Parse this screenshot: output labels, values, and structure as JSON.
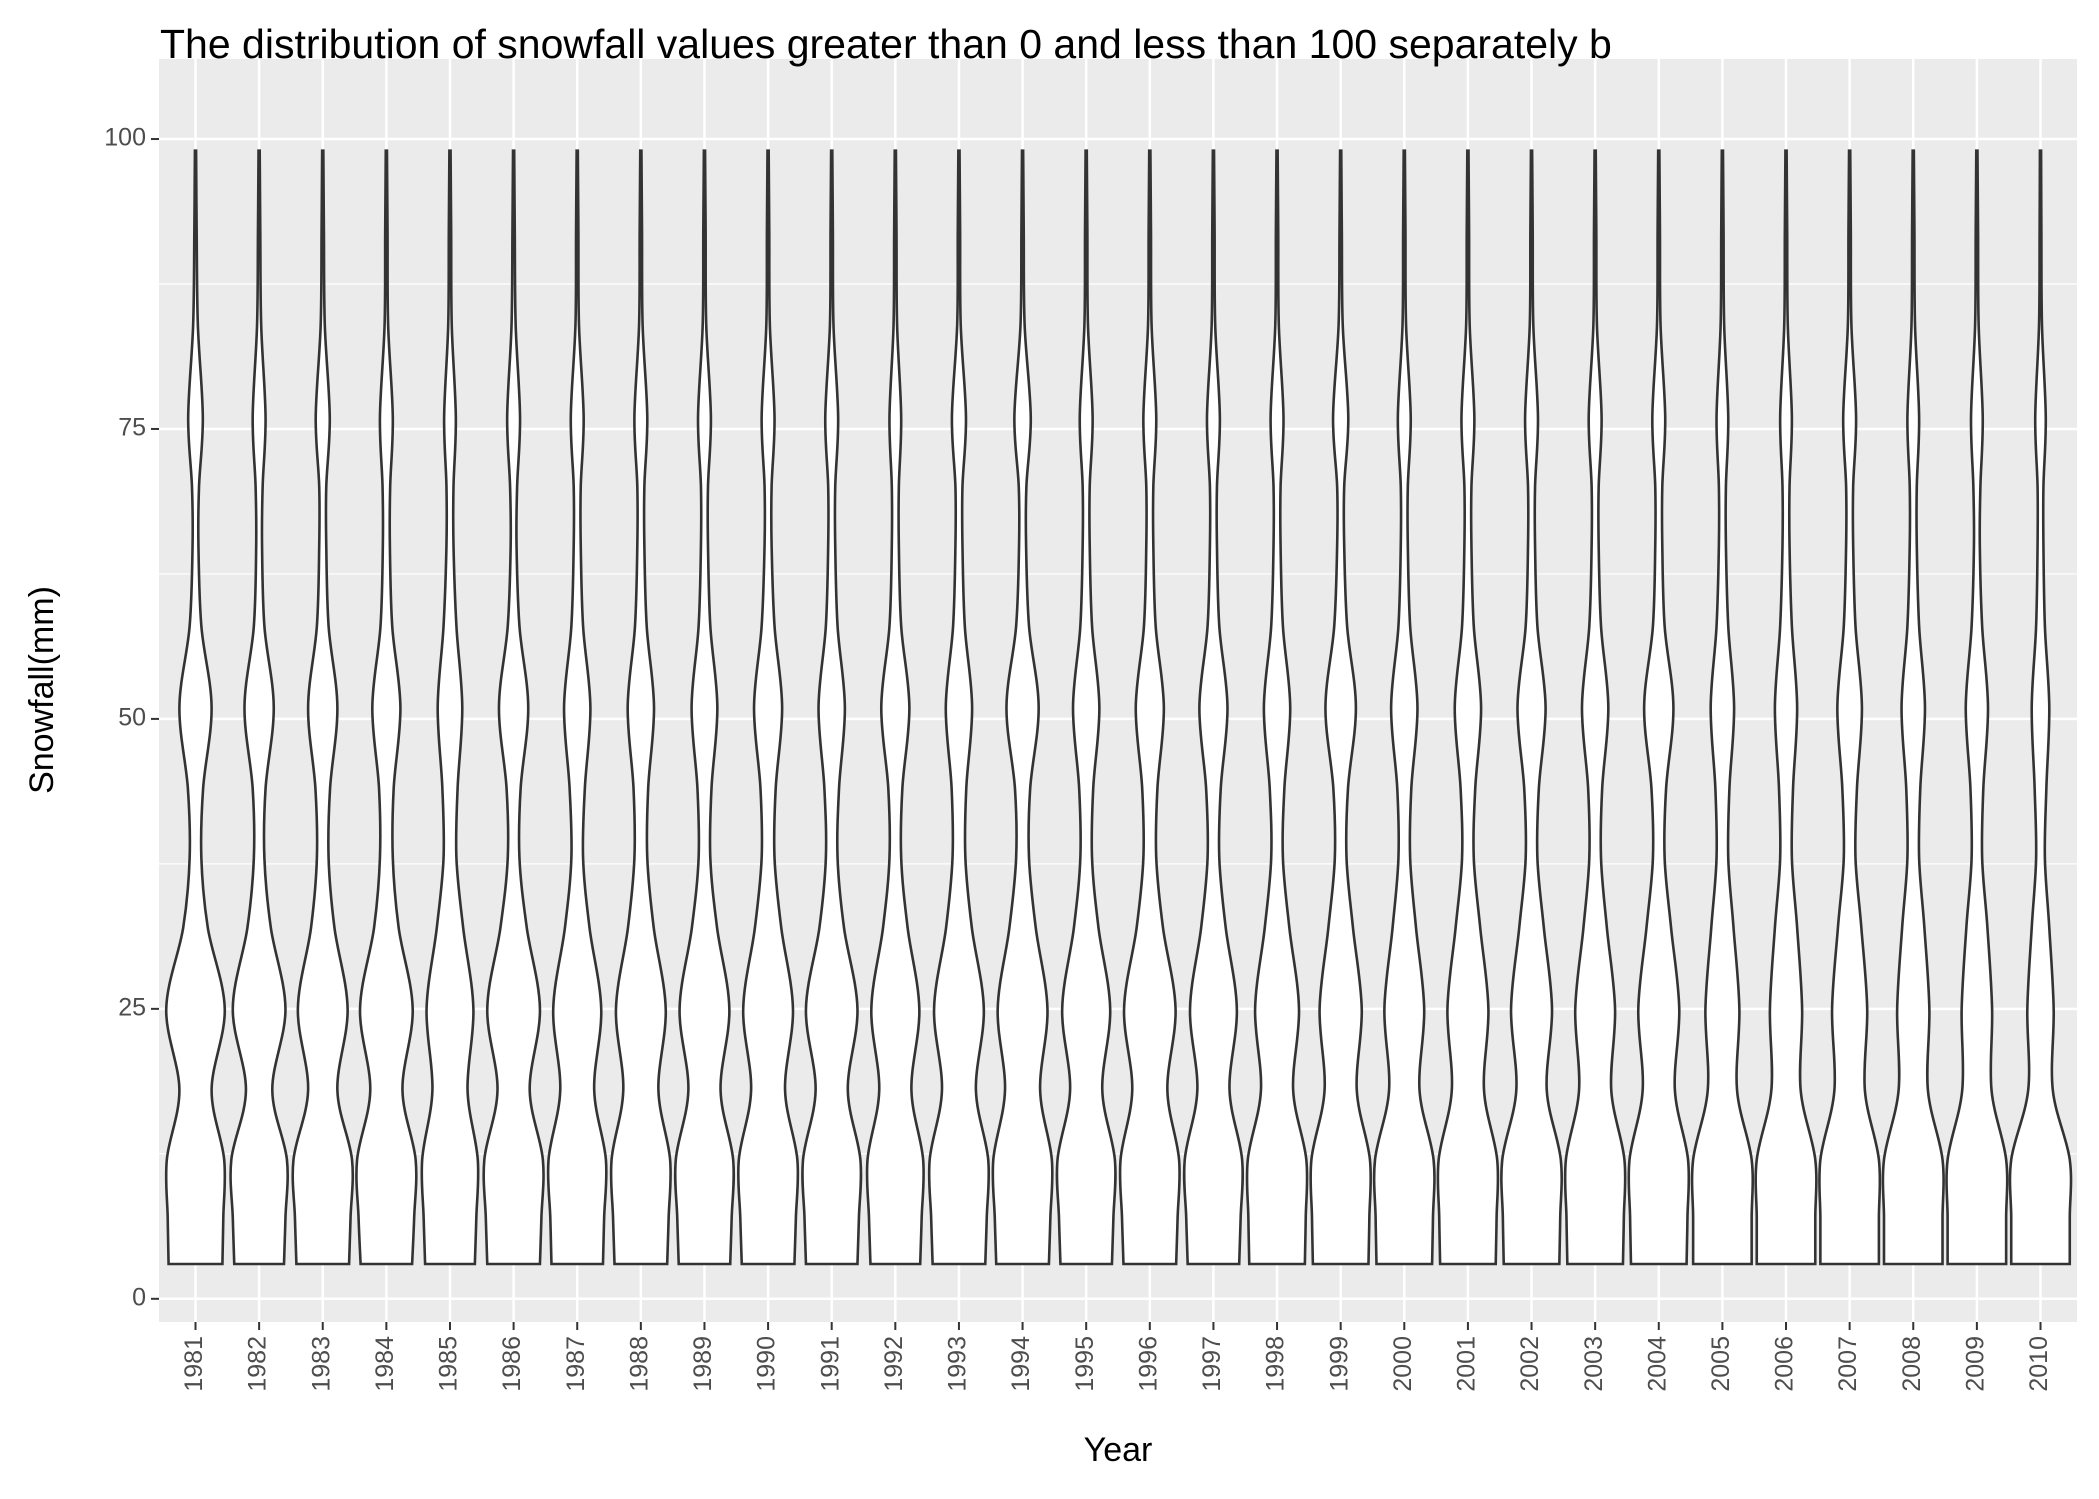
{
  "chart_data": {
    "type": "violin",
    "title": "The distribution of snowfall values greater than 0 and less than 100 separately b",
    "x_label": "Year",
    "y_label": "Snowfall(mm)",
    "categories": [
      "1981",
      "1982",
      "1983",
      "1984",
      "1985",
      "1986",
      "1987",
      "1988",
      "1989",
      "1990",
      "1991",
      "1992",
      "1993",
      "1994",
      "1995",
      "1996",
      "1997",
      "1998",
      "1999",
      "2000",
      "2001",
      "2002",
      "2003",
      "2004",
      "2005",
      "2006",
      "2007",
      "2008",
      "2009",
      "2010"
    ],
    "density_y": [
      3,
      7,
      12,
      18,
      25,
      32,
      38,
      44,
      51,
      58,
      65,
      70,
      76,
      84,
      92,
      99
    ],
    "density": [
      [
        0.92,
        0.95,
        0.98,
        0.55,
        1.0,
        0.42,
        0.2,
        0.26,
        0.55,
        0.2,
        0.1,
        0.12,
        0.25,
        0.08,
        0.04,
        0.02
      ],
      [
        0.85,
        0.9,
        0.95,
        0.45,
        0.9,
        0.4,
        0.18,
        0.22,
        0.5,
        0.18,
        0.1,
        0.12,
        0.22,
        0.07,
        0.04,
        0.02
      ],
      [
        0.9,
        0.95,
        1.0,
        0.5,
        0.85,
        0.4,
        0.2,
        0.25,
        0.5,
        0.2,
        0.12,
        0.12,
        0.24,
        0.07,
        0.04,
        0.02
      ],
      [
        0.88,
        0.95,
        1.0,
        0.55,
        0.9,
        0.42,
        0.22,
        0.25,
        0.48,
        0.2,
        0.12,
        0.13,
        0.22,
        0.06,
        0.04,
        0.02
      ],
      [
        0.85,
        0.9,
        0.95,
        0.6,
        0.8,
        0.45,
        0.22,
        0.26,
        0.42,
        0.22,
        0.12,
        0.12,
        0.2,
        0.06,
        0.04,
        0.02
      ],
      [
        0.9,
        0.95,
        1.0,
        0.55,
        0.9,
        0.45,
        0.2,
        0.24,
        0.5,
        0.2,
        0.1,
        0.12,
        0.22,
        0.07,
        0.04,
        0.02
      ],
      [
        0.88,
        0.92,
        0.98,
        0.58,
        0.82,
        0.42,
        0.2,
        0.26,
        0.45,
        0.2,
        0.12,
        0.12,
        0.22,
        0.06,
        0.04,
        0.02
      ],
      [
        0.9,
        0.95,
        1.0,
        0.6,
        0.85,
        0.44,
        0.22,
        0.25,
        0.45,
        0.2,
        0.12,
        0.12,
        0.22,
        0.06,
        0.04,
        0.02
      ],
      [
        0.88,
        0.93,
        0.98,
        0.55,
        0.85,
        0.43,
        0.2,
        0.24,
        0.44,
        0.2,
        0.12,
        0.12,
        0.22,
        0.06,
        0.04,
        0.02
      ],
      [
        0.9,
        0.95,
        1.0,
        0.58,
        0.85,
        0.45,
        0.22,
        0.26,
        0.48,
        0.22,
        0.12,
        0.12,
        0.22,
        0.06,
        0.04,
        0.02
      ],
      [
        0.88,
        0.93,
        0.98,
        0.55,
        0.88,
        0.42,
        0.2,
        0.25,
        0.45,
        0.2,
        0.12,
        0.12,
        0.22,
        0.06,
        0.04,
        0.02
      ],
      [
        0.85,
        0.9,
        0.95,
        0.55,
        0.82,
        0.42,
        0.2,
        0.24,
        0.48,
        0.2,
        0.12,
        0.12,
        0.2,
        0.06,
        0.04,
        0.02
      ],
      [
        0.9,
        0.95,
        1.0,
        0.58,
        0.85,
        0.44,
        0.22,
        0.25,
        0.45,
        0.2,
        0.12,
        0.12,
        0.24,
        0.06,
        0.04,
        0.02
      ],
      [
        0.9,
        0.95,
        1.0,
        0.6,
        0.85,
        0.45,
        0.22,
        0.26,
        0.55,
        0.22,
        0.12,
        0.13,
        0.28,
        0.07,
        0.04,
        0.02
      ],
      [
        0.88,
        0.93,
        0.98,
        0.55,
        0.82,
        0.42,
        0.2,
        0.24,
        0.45,
        0.2,
        0.12,
        0.12,
        0.22,
        0.06,
        0.04,
        0.02
      ],
      [
        0.9,
        0.95,
        1.0,
        0.6,
        0.88,
        0.45,
        0.22,
        0.26,
        0.48,
        0.2,
        0.12,
        0.12,
        0.22,
        0.06,
        0.04,
        0.02
      ],
      [
        0.88,
        0.93,
        0.98,
        0.55,
        0.8,
        0.42,
        0.2,
        0.25,
        0.48,
        0.2,
        0.12,
        0.12,
        0.22,
        0.06,
        0.04,
        0.02
      ],
      [
        0.95,
        0.98,
        1.0,
        0.55,
        0.75,
        0.42,
        0.2,
        0.25,
        0.45,
        0.2,
        0.12,
        0.12,
        0.22,
        0.06,
        0.04,
        0.02
      ],
      [
        0.95,
        0.98,
        1.0,
        0.55,
        0.72,
        0.42,
        0.2,
        0.25,
        0.52,
        0.22,
        0.12,
        0.12,
        0.26,
        0.07,
        0.04,
        0.02
      ],
      [
        0.95,
        0.98,
        1.0,
        0.52,
        0.68,
        0.4,
        0.2,
        0.24,
        0.45,
        0.2,
        0.12,
        0.12,
        0.22,
        0.06,
        0.04,
        0.02
      ],
      [
        0.95,
        0.98,
        1.0,
        0.55,
        0.7,
        0.42,
        0.2,
        0.25,
        0.45,
        0.2,
        0.12,
        0.12,
        0.22,
        0.06,
        0.04,
        0.02
      ],
      [
        0.95,
        0.98,
        1.0,
        0.52,
        0.7,
        0.42,
        0.2,
        0.25,
        0.48,
        0.2,
        0.12,
        0.12,
        0.22,
        0.06,
        0.04,
        0.02
      ],
      [
        0.95,
        0.98,
        1.0,
        0.55,
        0.68,
        0.4,
        0.2,
        0.24,
        0.45,
        0.2,
        0.12,
        0.12,
        0.22,
        0.06,
        0.04,
        0.02
      ],
      [
        0.95,
        0.98,
        1.0,
        0.55,
        0.7,
        0.42,
        0.2,
        0.25,
        0.5,
        0.2,
        0.12,
        0.12,
        0.22,
        0.06,
        0.04,
        0.02
      ],
      [
        1.0,
        1.0,
        1.0,
        0.5,
        0.58,
        0.38,
        0.2,
        0.24,
        0.4,
        0.2,
        0.12,
        0.12,
        0.2,
        0.06,
        0.04,
        0.02
      ],
      [
        1.0,
        1.0,
        1.0,
        0.5,
        0.55,
        0.38,
        0.2,
        0.24,
        0.38,
        0.2,
        0.12,
        0.12,
        0.2,
        0.06,
        0.04,
        0.02
      ],
      [
        1.0,
        1.0,
        1.0,
        0.52,
        0.6,
        0.4,
        0.2,
        0.25,
        0.42,
        0.2,
        0.12,
        0.12,
        0.22,
        0.06,
        0.04,
        0.02
      ],
      [
        1.0,
        1.0,
        1.0,
        0.5,
        0.55,
        0.38,
        0.2,
        0.24,
        0.4,
        0.2,
        0.12,
        0.12,
        0.2,
        0.06,
        0.04,
        0.02
      ],
      [
        1.0,
        1.0,
        1.0,
        0.5,
        0.52,
        0.36,
        0.18,
        0.22,
        0.38,
        0.18,
        0.1,
        0.12,
        0.2,
        0.06,
        0.04,
        0.02
      ],
      [
        1.0,
        1.0,
        1.0,
        0.42,
        0.45,
        0.3,
        0.15,
        0.2,
        0.3,
        0.15,
        0.1,
        0.1,
        0.18,
        0.05,
        0.03,
        0.02
      ]
    ],
    "color": "#ffffff",
    "line_color": "#333333",
    "ylim": [
      -2,
      106.9
    ],
    "yticks": [
      0,
      25,
      50,
      75,
      100
    ],
    "grid": true,
    "minor_grid": true
  }
}
